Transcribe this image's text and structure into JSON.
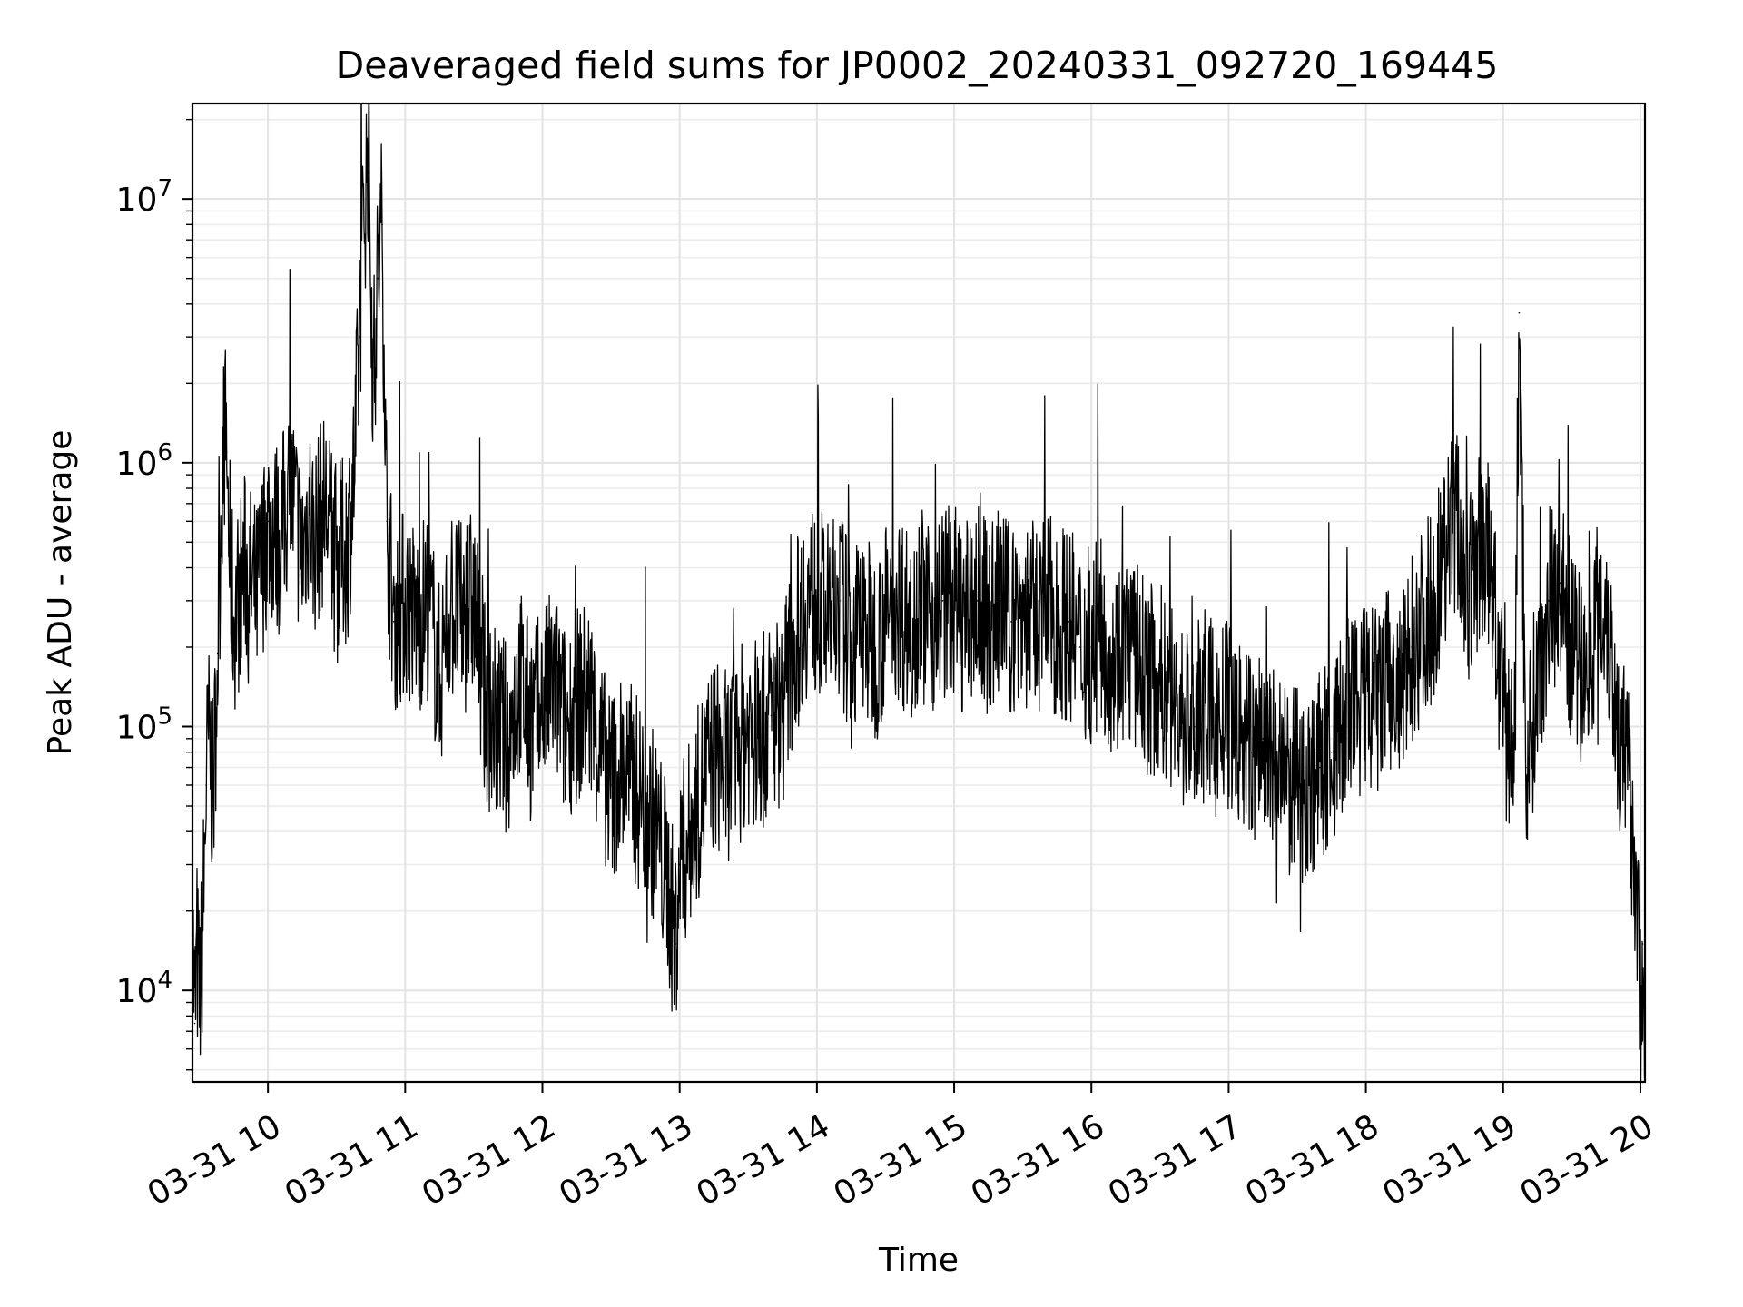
{
  "chart_data": {
    "type": "line",
    "title": "Deaveraged field sums for JP0002_20240331_092720_169445",
    "xlabel": "Time",
    "ylabel": "Peak ADU - average",
    "y_scale": "log",
    "ylim": [
      4500,
      23000000
    ],
    "xlim": [
      "2024-03-31 09:27",
      "2024-03-31 20:02"
    ],
    "grid": true,
    "legend": "none",
    "line_color": "#000000",
    "x_ticks": [
      "03-31 10",
      "03-31 11",
      "03-31 12",
      "03-31 13",
      "03-31 14",
      "03-31 15",
      "03-31 16",
      "03-31 17",
      "03-31 18",
      "03-31 19",
      "03-31 20"
    ],
    "y_ticks": [
      {
        "base": "10",
        "exp": "4",
        "value": 10000
      },
      {
        "base": "10",
        "exp": "5",
        "value": 100000
      },
      {
        "base": "10",
        "exp": "6",
        "value": 1000000
      },
      {
        "base": "10",
        "exp": "7",
        "value": 10000000
      }
    ],
    "series": [
      {
        "points": [
          [
            "2024-03-31 09:27",
            20000
          ],
          [
            "2024-03-31 09:28",
            7500
          ],
          [
            "2024-03-31 09:29",
            14000
          ],
          [
            "2024-03-31 09:30",
            9000
          ],
          [
            "2024-03-31 09:31",
            13000
          ],
          [
            "2024-03-31 09:32",
            25000
          ],
          [
            "2024-03-31 09:33",
            60000
          ],
          [
            "2024-03-31 09:34",
            90000
          ],
          [
            "2024-03-31 09:35",
            75000
          ],
          [
            "2024-03-31 09:36",
            50000
          ],
          [
            "2024-03-31 09:38",
            190000
          ],
          [
            "2024-03-31 09:40",
            900000
          ],
          [
            "2024-03-31 09:41",
            1300000
          ],
          [
            "2024-03-31 09:42",
            1100000
          ],
          [
            "2024-03-31 09:43",
            500000
          ],
          [
            "2024-03-31 09:45",
            250000
          ],
          [
            "2024-03-31 09:50",
            400000
          ],
          [
            "2024-03-31 09:55",
            300000
          ],
          [
            "2024-03-31 10:00",
            600000
          ],
          [
            "2024-03-31 10:05",
            500000
          ],
          [
            "2024-03-31 10:10",
            800000
          ],
          [
            "2024-03-31 10:15",
            450000
          ],
          [
            "2024-03-31 10:18",
            700000
          ],
          [
            "2024-03-31 10:20",
            500000
          ],
          [
            "2024-03-31 10:25",
            700000
          ],
          [
            "2024-03-31 10:30",
            400000
          ],
          [
            "2024-03-31 10:35",
            500000
          ],
          [
            "2024-03-31 10:38",
            1000000
          ],
          [
            "2024-03-31 10:40",
            3000000
          ],
          [
            "2024-03-31 10:42",
            9000000
          ],
          [
            "2024-03-31 10:44",
            16000000
          ],
          [
            "2024-03-31 10:46",
            2000000
          ],
          [
            "2024-03-31 10:48",
            5000000
          ],
          [
            "2024-03-31 10:50",
            8000000
          ],
          [
            "2024-03-31 10:52",
            600000
          ],
          [
            "2024-03-31 10:55",
            250000
          ],
          [
            "2024-03-31 11:00",
            300000
          ],
          [
            "2024-03-31 11:05",
            250000
          ],
          [
            "2024-03-31 11:10",
            300000
          ],
          [
            "2024-03-31 11:15",
            150000
          ],
          [
            "2024-03-31 11:20",
            300000
          ],
          [
            "2024-03-31 11:25",
            250000
          ],
          [
            "2024-03-31 11:30",
            300000
          ],
          [
            "2024-03-31 11:35",
            120000
          ],
          [
            "2024-03-31 11:40",
            100000
          ],
          [
            "2024-03-31 11:45",
            90000
          ],
          [
            "2024-03-31 11:50",
            150000
          ],
          [
            "2024-03-31 11:55",
            100000
          ],
          [
            "2024-03-31 12:00",
            120000
          ],
          [
            "2024-03-31 12:05",
            150000
          ],
          [
            "2024-03-31 12:10",
            100000
          ],
          [
            "2024-03-31 12:15",
            120000
          ],
          [
            "2024-03-31 12:20",
            130000
          ],
          [
            "2024-03-31 12:25",
            80000
          ],
          [
            "2024-03-31 12:30",
            60000
          ],
          [
            "2024-03-31 12:35",
            70000
          ],
          [
            "2024-03-31 12:40",
            60000
          ],
          [
            "2024-03-31 12:45",
            50000
          ],
          [
            "2024-03-31 12:50",
            40000
          ],
          [
            "2024-03-31 12:55",
            25000
          ],
          [
            "2024-03-31 12:58",
            15000
          ],
          [
            "2024-03-31 13:00",
            30000
          ],
          [
            "2024-03-31 13:05",
            40000
          ],
          [
            "2024-03-31 13:10",
            60000
          ],
          [
            "2024-03-31 13:15",
            80000
          ],
          [
            "2024-03-31 13:20",
            70000
          ],
          [
            "2024-03-31 13:25",
            80000
          ],
          [
            "2024-03-31 13:30",
            100000
          ],
          [
            "2024-03-31 13:35",
            90000
          ],
          [
            "2024-03-31 13:40",
            110000
          ],
          [
            "2024-03-31 13:45",
            120000
          ],
          [
            "2024-03-31 13:50",
            200000
          ],
          [
            "2024-03-31 13:55",
            300000
          ],
          [
            "2024-03-31 14:00",
            300000
          ],
          [
            "2024-03-31 14:05",
            250000
          ],
          [
            "2024-03-31 14:10",
            300000
          ],
          [
            "2024-03-31 14:15",
            200000
          ],
          [
            "2024-03-31 14:20",
            250000
          ],
          [
            "2024-03-31 14:25",
            200000
          ],
          [
            "2024-03-31 14:30",
            250000
          ],
          [
            "2024-03-31 14:35",
            300000
          ],
          [
            "2024-03-31 14:40",
            250000
          ],
          [
            "2024-03-31 14:45",
            300000
          ],
          [
            "2024-03-31 14:50",
            250000
          ],
          [
            "2024-03-31 14:55",
            300000
          ],
          [
            "2024-03-31 15:00",
            300000
          ],
          [
            "2024-03-31 15:05",
            250000
          ],
          [
            "2024-03-31 15:10",
            300000
          ],
          [
            "2024-03-31 15:15",
            250000
          ],
          [
            "2024-03-31 15:20",
            300000
          ],
          [
            "2024-03-31 15:25",
            250000
          ],
          [
            "2024-03-31 15:30",
            280000
          ],
          [
            "2024-03-31 15:35",
            250000
          ],
          [
            "2024-03-31 15:40",
            280000
          ],
          [
            "2024-03-31 15:45",
            250000
          ],
          [
            "2024-03-31 15:50",
            250000
          ],
          [
            "2024-03-31 15:55",
            200000
          ],
          [
            "2024-03-31 16:00",
            200000
          ],
          [
            "2024-03-31 16:05",
            220000
          ],
          [
            "2024-03-31 16:10",
            180000
          ],
          [
            "2024-03-31 16:15",
            200000
          ],
          [
            "2024-03-31 16:20",
            180000
          ],
          [
            "2024-03-31 16:25",
            150000
          ],
          [
            "2024-03-31 16:30",
            150000
          ],
          [
            "2024-03-31 16:35",
            130000
          ],
          [
            "2024-03-31 16:40",
            110000
          ],
          [
            "2024-03-31 16:45",
            100000
          ],
          [
            "2024-03-31 16:50",
            120000
          ],
          [
            "2024-03-31 16:55",
            100000
          ],
          [
            "2024-03-31 17:00",
            110000
          ],
          [
            "2024-03-31 17:05",
            90000
          ],
          [
            "2024-03-31 17:10",
            80000
          ],
          [
            "2024-03-31 17:15",
            90000
          ],
          [
            "2024-03-31 17:20",
            70000
          ],
          [
            "2024-03-31 17:25",
            60000
          ],
          [
            "2024-03-31 17:30",
            60000
          ],
          [
            "2024-03-31 17:35",
            60000
          ],
          [
            "2024-03-31 17:40",
            70000
          ],
          [
            "2024-03-31 17:45",
            80000
          ],
          [
            "2024-03-31 17:50",
            100000
          ],
          [
            "2024-03-31 17:55",
            120000
          ],
          [
            "2024-03-31 18:00",
            130000
          ],
          [
            "2024-03-31 18:05",
            120000
          ],
          [
            "2024-03-31 18:10",
            150000
          ],
          [
            "2024-03-31 18:15",
            120000
          ],
          [
            "2024-03-31 18:20",
            200000
          ],
          [
            "2024-03-31 18:25",
            250000
          ],
          [
            "2024-03-31 18:30",
            300000
          ],
          [
            "2024-03-31 18:35",
            500000
          ],
          [
            "2024-03-31 18:40",
            600000
          ],
          [
            "2024-03-31 18:45",
            300000
          ],
          [
            "2024-03-31 18:50",
            500000
          ],
          [
            "2024-03-31 18:55",
            400000
          ],
          [
            "2024-03-31 19:00",
            100000
          ],
          [
            "2024-03-31 19:05",
            80000
          ],
          [
            "2024-03-31 19:07",
            3700000
          ],
          [
            "2024-03-31 19:10",
            70000
          ],
          [
            "2024-03-31 19:15",
            150000
          ],
          [
            "2024-03-31 19:20",
            300000
          ],
          [
            "2024-03-31 19:25",
            350000
          ],
          [
            "2024-03-31 19:30",
            200000
          ],
          [
            "2024-03-31 19:35",
            150000
          ],
          [
            "2024-03-31 19:40",
            250000
          ],
          [
            "2024-03-31 19:45",
            300000
          ],
          [
            "2024-03-31 19:50",
            100000
          ],
          [
            "2024-03-31 19:55",
            60000
          ],
          [
            "2024-03-31 19:58",
            30000
          ],
          [
            "2024-03-31 20:00",
            8000
          ],
          [
            "2024-03-31 20:01",
            15000
          ],
          [
            "2024-03-31 20:02",
            8000
          ]
        ]
      }
    ]
  }
}
